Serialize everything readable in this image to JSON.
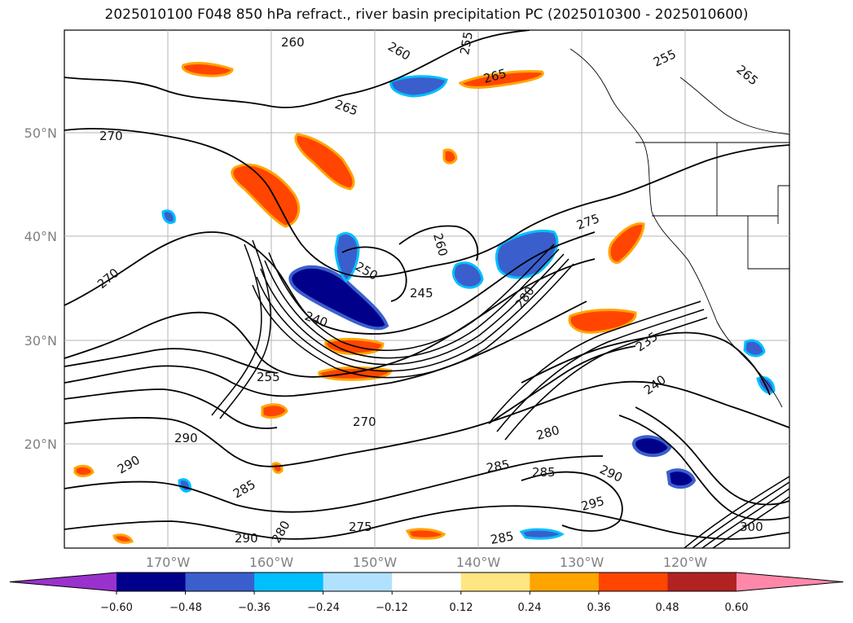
{
  "title": "2025010100 F048 850 hPa refract., river basin precipitation PC (2025010300 - 2025010600)",
  "latitude_labels": [
    "50°N",
    "40°N",
    "30°N",
    "20°N"
  ],
  "longitude_labels": [
    "170°W",
    "160°W",
    "150°W",
    "140°W",
    "130°W",
    "120°W"
  ],
  "contour_labels": [
    "260",
    "255",
    "260",
    "255",
    "265",
    "265",
    "265",
    "270",
    "275",
    "260",
    "250",
    "245",
    "240",
    "235",
    "240",
    "255",
    "270",
    "280",
    "280",
    "285",
    "285",
    "290",
    "295",
    "300",
    "290",
    "280",
    "285",
    "290",
    "290",
    "275",
    "285",
    "270"
  ],
  "colorbar": {
    "ticks": [
      "−0.60",
      "−0.48",
      "−0.36",
      "−0.24",
      "−0.12",
      "0.12",
      "0.24",
      "0.36",
      "0.48",
      "0.60"
    ],
    "colors": [
      "#9932cc",
      "#00008b",
      "#3a5fcd",
      "#00bfff",
      "#b0e2ff",
      "#ffffff",
      "#ffe680",
      "#ffa500",
      "#ff4500",
      "#b22222",
      "#ff88aa"
    ]
  }
}
